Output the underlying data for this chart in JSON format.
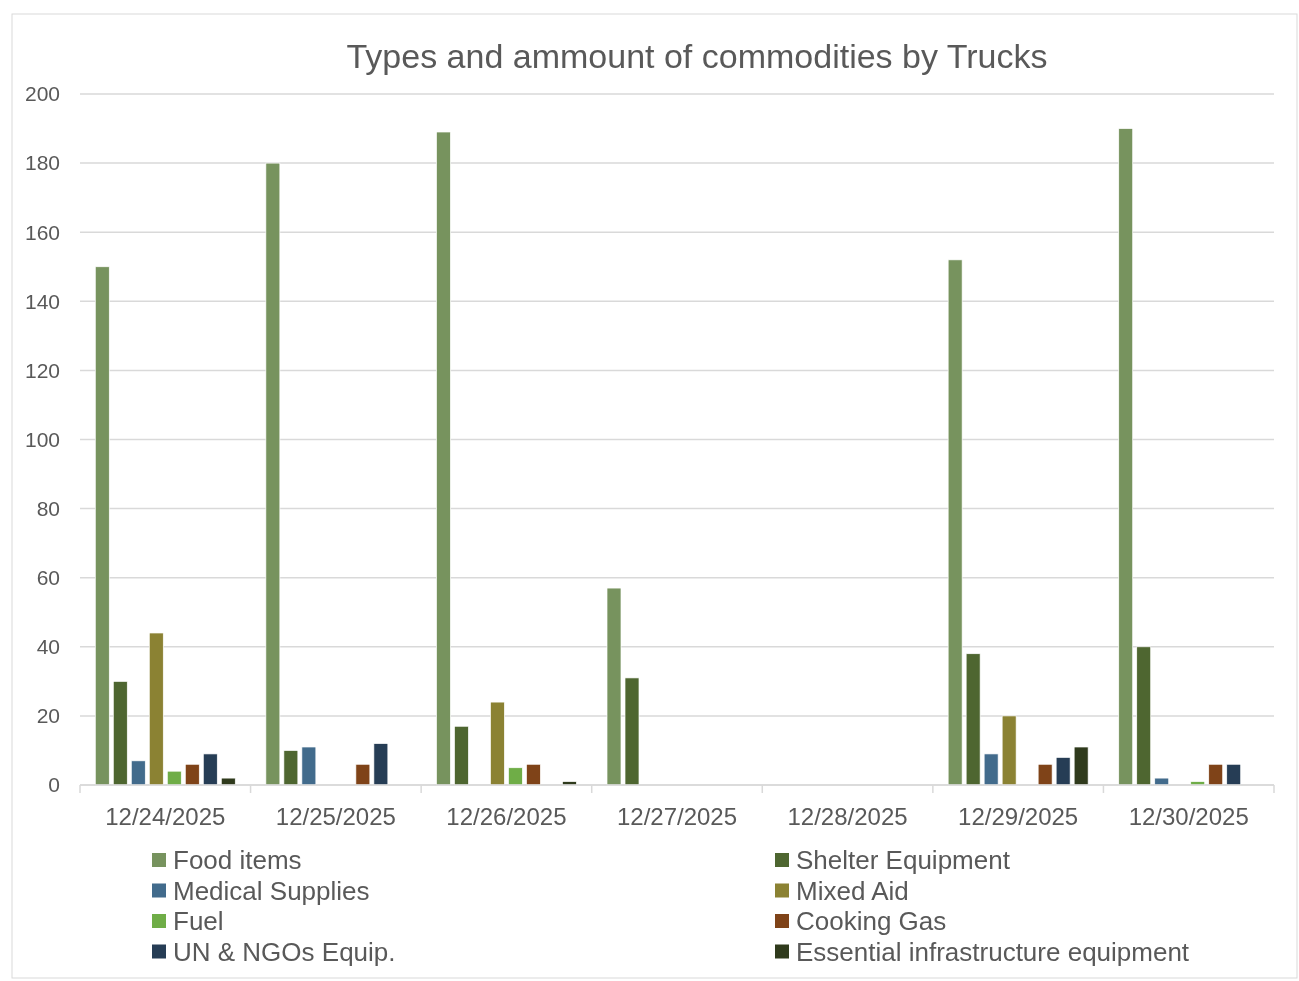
{
  "chart_data": {
    "type": "bar",
    "title": "Types and ammount of commodities by Trucks",
    "categories": [
      "12/24/2025",
      "12/25/2025",
      "12/26/2025",
      "12/27/2025",
      "12/28/2025",
      "12/29/2025",
      "12/30/2025"
    ],
    "series": [
      {
        "name": "Food items",
        "color": "#77935e",
        "values": [
          150,
          180,
          189,
          57,
          null,
          152,
          190
        ]
      },
      {
        "name": "Shelter Equipment",
        "color": "#4e6630",
        "values": [
          30,
          10,
          17,
          31,
          null,
          38,
          40
        ]
      },
      {
        "name": "Medical Supplies",
        "color": "#426b8c",
        "values": [
          7,
          11,
          null,
          null,
          null,
          9,
          2
        ]
      },
      {
        "name": "Mixed  Aid",
        "color": "#8b8233",
        "values": [
          44,
          null,
          24,
          null,
          null,
          20,
          null
        ]
      },
      {
        "name": "Fuel",
        "color": "#6fad47",
        "values": [
          4,
          null,
          5,
          null,
          null,
          null,
          1
        ]
      },
      {
        "name": "Cooking Gas",
        "color": "#7f4318",
        "values": [
          6,
          6,
          6,
          null,
          null,
          6,
          6
        ]
      },
      {
        "name": "UN & NGOs Equip.",
        "color": "#263d55",
        "values": [
          9,
          12,
          null,
          null,
          null,
          8,
          6
        ]
      },
      {
        "name": "Essential infrastructure equipment",
        "color": "#2f3a1c",
        "values": [
          2,
          null,
          1,
          null,
          null,
          11,
          null
        ]
      }
    ],
    "ylim": [
      0,
      200
    ],
    "yticks": [
      0,
      20,
      40,
      60,
      80,
      100,
      120,
      140,
      160,
      180,
      200
    ],
    "grid": "y",
    "legend": "bottom"
  }
}
